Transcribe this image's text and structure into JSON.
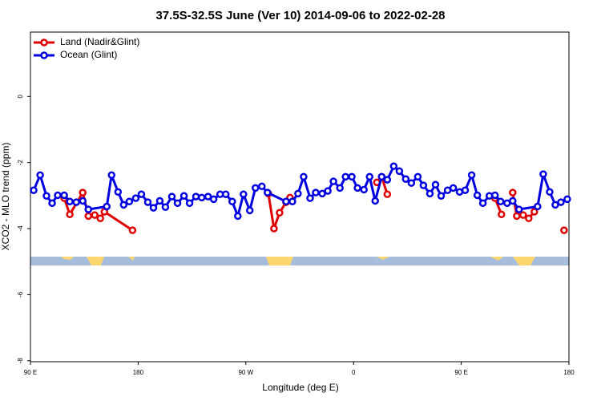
{
  "chart_data": {
    "type": "line",
    "title": "37.5S-32.5S June (Ver 10)   2014-09-06 to 2022-02-28",
    "x_label": "Longitude (deg E)",
    "y_label": "XCO2 - MLO trend (ppm)",
    "xlim": [
      90,
      540
    ],
    "xticks": [
      {
        "value": 90,
        "label": "90 E"
      },
      {
        "value": 180,
        "label": "180"
      },
      {
        "value": 270,
        "label": "90 W"
      },
      {
        "value": 360,
        "label": "0"
      },
      {
        "value": 450,
        "label": "90 E"
      },
      {
        "value": 540,
        "label": "180"
      }
    ],
    "ylim": [
      -8.03,
      1.95
    ],
    "yticks": [
      0,
      -2,
      -4,
      -6,
      -8
    ],
    "legend": "top-left",
    "series": [
      {
        "name": "Land (Nadir&Glint)",
        "color": "#e00000",
        "x": [
          118.2,
          122.9,
          133.7,
          138.4,
          143.7,
          148.4,
          151.8,
          175.3,
          null,
          288.8,
          293.5,
          298.2,
          303.6,
          306.9,
          null,
          379.5,
          383.5,
          388.2,
          null,
          478.2,
          483.6,
          null,
          493.0,
          496.4,
          501.7,
          506.4,
          511.1,
          null,
          535.9
        ],
        "values": [
          -3.08,
          -3.57,
          -2.91,
          -3.62,
          -3.59,
          -3.69,
          -3.49,
          -4.05,
          null,
          -2.94,
          -4.0,
          -3.52,
          -3.2,
          -3.06,
          null,
          -2.6,
          -2.43,
          -2.96,
          null,
          -3.08,
          -3.57,
          null,
          -2.91,
          -3.62,
          -3.59,
          -3.69,
          -3.49,
          null,
          -4.05
        ]
      },
      {
        "name": "Ocean (Glint)",
        "color": "#0000e0",
        "x": [
          92.7,
          98.1,
          103.4,
          108.1,
          112.8,
          118.2,
          122.9,
          128.3,
          133.7,
          138.4,
          153.8,
          157.8,
          163.2,
          167.9,
          172.6,
          178.0,
          182.7,
          188.1,
          192.8,
          198.1,
          202.8,
          208.2,
          212.9,
          218.3,
          223.0,
          228.3,
          233.1,
          238.4,
          243.1,
          248.5,
          253.2,
          258.6,
          263.3,
          268.0,
          273.3,
          278.0,
          283.4,
          288.1,
          303.6,
          308.9,
          313.6,
          318.3,
          323.7,
          328.4,
          333.8,
          338.5,
          343.2,
          348.6,
          353.3,
          358.6,
          363.3,
          368.7,
          373.4,
          378.1,
          383.5,
          388.2,
          393.6,
          398.3,
          403.6,
          408.3,
          413.7,
          418.4,
          423.8,
          428.5,
          433.2,
          438.6,
          443.3,
          448.6,
          453.3,
          458.7,
          463.4,
          468.1,
          473.5,
          478.2,
          482.9,
          488.3,
          493.0,
          498.3,
          513.8,
          518.5,
          523.9,
          528.6,
          533.3,
          538.6
        ],
        "values": [
          -2.84,
          -2.38,
          -3.01,
          -3.23,
          -2.99,
          -2.99,
          -3.18,
          -3.2,
          -3.16,
          -3.42,
          -3.33,
          -2.38,
          -2.89,
          -3.28,
          -3.18,
          -3.08,
          -2.96,
          -3.2,
          -3.37,
          -3.16,
          -3.35,
          -3.03,
          -3.23,
          -3.01,
          -3.23,
          -3.03,
          -3.06,
          -3.03,
          -3.11,
          -2.96,
          -2.96,
          -3.18,
          -3.62,
          -2.96,
          -3.45,
          -2.77,
          -2.72,
          -2.91,
          -3.18,
          -3.18,
          -2.94,
          -2.43,
          -3.08,
          -2.91,
          -2.94,
          -2.86,
          -2.57,
          -2.77,
          -2.43,
          -2.43,
          -2.77,
          -2.82,
          -2.43,
          -3.16,
          -2.43,
          -2.52,
          -2.11,
          -2.26,
          -2.5,
          -2.62,
          -2.43,
          -2.69,
          -2.94,
          -2.67,
          -3.01,
          -2.84,
          -2.77,
          -2.89,
          -2.84,
          -2.38,
          -2.99,
          -3.23,
          -3.01,
          -2.99,
          -3.18,
          -3.23,
          -3.16,
          -3.42,
          -3.33,
          -2.35,
          -2.89,
          -3.28,
          -3.2,
          -3.11
        ]
      }
    ]
  }
}
